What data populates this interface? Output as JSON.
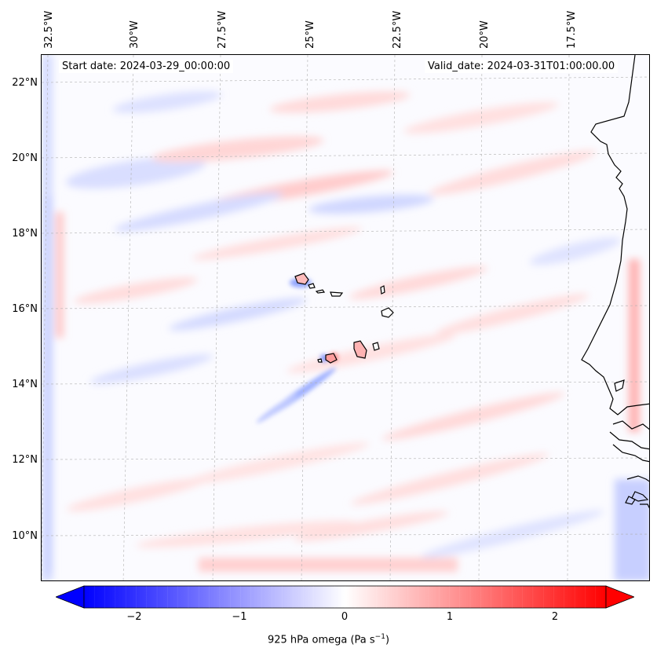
{
  "header": {
    "start_date": "Start date: 2024-03-29_00:00:00",
    "valid_date": "Valid_date: 2024-03-31T01:00:00.00"
  },
  "axes": {
    "lon_ticks": [
      "32.5°W",
      "30°W",
      "27.5°W",
      "25°W",
      "22.5°W",
      "20°W",
      "17.5°W"
    ],
    "lat_ticks": [
      "22°N",
      "20°N",
      "18°N",
      "16°N",
      "14°N",
      "12°N",
      "10°N"
    ],
    "gridlines": true
  },
  "colorbar": {
    "tick_labels": [
      "−2",
      "−1",
      "0",
      "1",
      "2"
    ],
    "tick_values": [
      -2,
      -1,
      0,
      1,
      2
    ],
    "range": [
      -2.5,
      2.5
    ],
    "extend": "both",
    "colormap": "bwr",
    "label_main": "925 hPa omega (Pa s",
    "label_exp": "−1",
    "label_close": ")"
  },
  "colors": {
    "negative": "#0000ff",
    "neutral": "#ffffff",
    "positive": "#ff0000",
    "coastline": "#000000",
    "grid": "#b0b0b0"
  }
}
